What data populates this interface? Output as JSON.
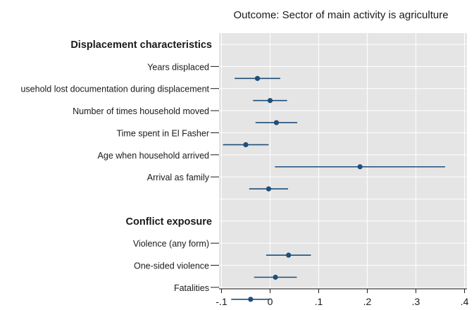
{
  "chart_data": {
    "type": "coefficient-plot",
    "title": "Outcome: Sector of main activity is agriculture",
    "xlim": [
      -0.105,
      0.405
    ],
    "x_ticks": [
      -0.1,
      0,
      0.1,
      0.2,
      0.3,
      0.4
    ],
    "x_tick_labels": [
      "-.1",
      "0",
      ".1",
      ".2",
      ".3",
      ".4"
    ],
    "grid": true,
    "groups": [
      {
        "label": "Displacement characteristics",
        "rows": [
          {
            "label": "Years displaced",
            "estimate": -0.026,
            "ci_low": -0.073,
            "ci_high": 0.021
          },
          {
            "label": "usehold lost documentation during displacement",
            "estimate": 0.0,
            "ci_low": -0.035,
            "ci_high": 0.035
          },
          {
            "label": "Number of times household moved",
            "estimate": 0.013,
            "ci_low": -0.03,
            "ci_high": 0.056
          },
          {
            "label": "Time spent in El Fasher",
            "estimate": -0.05,
            "ci_low": -0.097,
            "ci_high": -0.003
          },
          {
            "label": "Age when household arrived",
            "estimate": 0.185,
            "ci_low": 0.01,
            "ci_high": 0.36
          },
          {
            "label": "Arrival as family",
            "estimate": -0.003,
            "ci_low": -0.043,
            "ci_high": 0.037
          }
        ]
      },
      {
        "label": "Conflict exposure",
        "rows": [
          {
            "label": "Violence (any form)",
            "estimate": 0.038,
            "ci_low": -0.008,
            "ci_high": 0.084
          },
          {
            "label": "One-sided violence",
            "estimate": 0.011,
            "ci_low": -0.033,
            "ci_high": 0.055
          },
          {
            "label": "Fatalities",
            "estimate": -0.04,
            "ci_low": -0.08,
            "ci_high": 0.0
          }
        ]
      }
    ],
    "colors": {
      "plot_background": "#e5e5e5",
      "grid": "#ffffff",
      "marker": "#1f4e79",
      "axis": "#1a1a1a"
    }
  }
}
